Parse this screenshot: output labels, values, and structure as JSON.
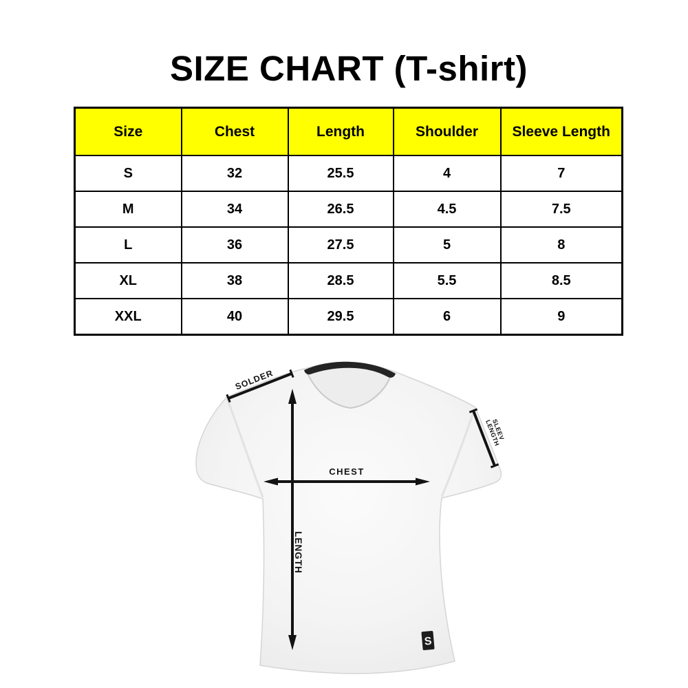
{
  "page": {
    "title": "SIZE CHART (T-shirt)"
  },
  "size_table": {
    "header_bg": "#ffff00",
    "border_color": "#000000",
    "columns": [
      "Size",
      "Chest",
      "Length",
      "Shoulder",
      "Sleeve Length"
    ],
    "rows": [
      [
        "S",
        "32",
        "25.5",
        "4",
        "7"
      ],
      [
        "M",
        "34",
        "26.5",
        "4.5",
        "7.5"
      ],
      [
        "L",
        "36",
        "27.5",
        "5",
        "8"
      ],
      [
        "XL",
        "38",
        "28.5",
        "5.5",
        "8.5"
      ],
      [
        "XXL",
        "40",
        "29.5",
        "6",
        "9"
      ]
    ]
  },
  "diagram": {
    "shoulder_label": "SOLDER",
    "sleeve_label_line1": "SLEEV",
    "sleeve_label_line2": "LENGTH",
    "chest_label": "CHEST",
    "length_label": "LENGTH",
    "tag_letter": "S",
    "colors": {
      "annotation": "#131313",
      "shirt_fill": "#f3f3f3",
      "collar": "#242424"
    }
  }
}
